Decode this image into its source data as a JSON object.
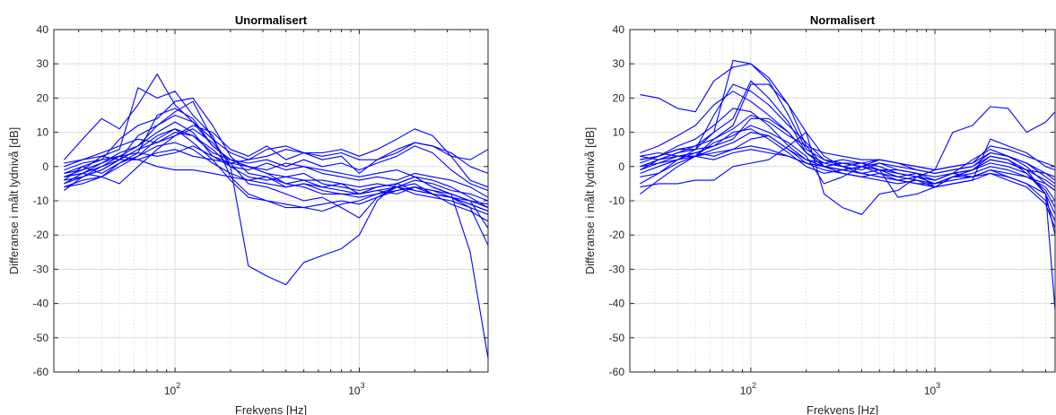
{
  "chart_data": [
    {
      "type": "line",
      "title": "Unormalisert",
      "xlabel": "Frekvens [Hz]",
      "ylabel": "Differanse i målt lydnivå [dB]",
      "xscale": "log",
      "xlim": [
        22,
        5000
      ],
      "ylim": [
        -60,
        40
      ],
      "yticks": [
        40,
        30,
        20,
        10,
        0,
        -10,
        -20,
        -30,
        -40,
        -50,
        -60
      ],
      "xticks": [
        {
          "value": 100,
          "base": "10",
          "exp": "2"
        },
        {
          "value": 1000,
          "base": "10",
          "exp": "3"
        }
      ],
      "grid": true,
      "line_color": "#0000ff",
      "x": [
        25,
        31.5,
        40,
        50,
        63,
        80,
        100,
        125,
        160,
        200,
        250,
        315,
        400,
        500,
        630,
        800,
        1000,
        1250,
        1600,
        2000,
        2500,
        3150,
        4000,
        5000
      ],
      "series": [
        {
          "values": [
            -5,
            -3,
            0,
            2,
            9,
            12,
            16,
            19,
            8,
            0,
            -29,
            -32,
            -34.5,
            -28,
            -26,
            -24,
            -20,
            -10,
            -5,
            -3,
            -6,
            -8,
            -25,
            -56
          ]
        },
        {
          "values": [
            2,
            8,
            14,
            11,
            18,
            27,
            18,
            13,
            6,
            2,
            0,
            -2,
            -5,
            -4,
            -6,
            -5,
            -8,
            -6,
            -5,
            -7,
            -8,
            -9,
            -12,
            -23
          ]
        },
        {
          "values": [
            -3,
            -1,
            3,
            5,
            23,
            20,
            22,
            15,
            9,
            -3,
            -8,
            -10,
            -12,
            -12,
            -13,
            -11,
            -10,
            -8,
            -6,
            -8,
            -9,
            -10,
            -12,
            -14
          ]
        },
        {
          "values": [
            -4,
            0,
            2,
            8,
            12,
            14,
            19,
            20,
            12,
            3,
            -2,
            -3,
            -5,
            -6,
            -8,
            -8,
            -9,
            -8,
            -7,
            -6,
            -7,
            -8,
            -10,
            -12
          ]
        },
        {
          "values": [
            -5,
            -2,
            1,
            4,
            6,
            10,
            13,
            10,
            3,
            1,
            2,
            3,
            5,
            4,
            4,
            5,
            3,
            5,
            8,
            11,
            9,
            3,
            -4,
            -6
          ]
        },
        {
          "values": [
            -6,
            -4,
            -3,
            0,
            3,
            8,
            11,
            9,
            4,
            2,
            1,
            2,
            0,
            2,
            0,
            1,
            -1,
            1,
            3,
            6,
            4,
            -1,
            -5,
            -7
          ]
        },
        {
          "values": [
            -7,
            -3,
            -1,
            2,
            5,
            7,
            9,
            12,
            10,
            5,
            3,
            6,
            2,
            4,
            3,
            4,
            2,
            2,
            5,
            7,
            6,
            3,
            2,
            5
          ]
        },
        {
          "values": [
            -2,
            0,
            -2,
            1,
            3,
            6,
            7,
            5,
            1,
            -2,
            -4,
            -3,
            -6,
            -5,
            -6,
            -7,
            -8,
            -7,
            -8,
            -6,
            -8,
            -9,
            -11,
            -13
          ]
        },
        {
          "values": [
            -1,
            1,
            2,
            3,
            4,
            3,
            4,
            6,
            3,
            0,
            -1,
            1,
            -1,
            0,
            -2,
            -3,
            -4,
            -3,
            -4,
            -2,
            -3,
            -4,
            -6,
            -9
          ]
        },
        {
          "values": [
            0,
            2,
            3,
            2,
            2,
            4,
            5,
            3,
            2,
            1,
            0,
            -2,
            -3,
            -4,
            -4,
            -5,
            -6,
            -5,
            -6,
            -4,
            -5,
            -7,
            -8,
            -10
          ]
        },
        {
          "values": [
            -3,
            -2,
            -3,
            -5,
            0,
            5,
            9,
            11,
            7,
            1,
            -5,
            -6,
            -8,
            -10,
            -9,
            -12,
            -15,
            -9,
            -6,
            -5,
            -8,
            -11,
            -13,
            -16
          ]
        },
        {
          "values": [
            1,
            2,
            4,
            6,
            8,
            7,
            10,
            9,
            5,
            0,
            -3,
            -4,
            -3,
            -2,
            -5,
            -6,
            -7,
            -6,
            -5,
            -3,
            -6,
            -8,
            -10,
            -18
          ]
        },
        {
          "values": [
            -4,
            -3,
            -1,
            2,
            5,
            9,
            11,
            7,
            2,
            -4,
            -9,
            -10,
            -11,
            -12,
            -11,
            -10,
            -11,
            -9,
            -7,
            -6,
            -7,
            -9,
            -10,
            -11
          ]
        },
        {
          "values": [
            -2,
            -1,
            1,
            3,
            6,
            12,
            15,
            13,
            8,
            4,
            2,
            5,
            6,
            4,
            2,
            3,
            -2,
            2,
            4,
            7,
            6,
            4,
            0,
            -2
          ]
        },
        {
          "values": [
            -6,
            -5,
            -3,
            1,
            4,
            15,
            17,
            14,
            6,
            2,
            0,
            -1,
            1,
            0,
            -1,
            -2,
            -3,
            -2,
            -1,
            -3,
            -4,
            -6,
            -9,
            -12
          ]
        },
        {
          "values": [
            -3,
            -2,
            0,
            3,
            2,
            0,
            -1,
            -1,
            -2,
            -3,
            -4,
            -5,
            -6,
            -5,
            -7,
            -8,
            -8,
            -7,
            -6,
            -7,
            -8,
            -9,
            -11,
            -13
          ]
        }
      ]
    },
    {
      "type": "line",
      "title": "Normalisert",
      "xlabel": "Frekvens [Hz]",
      "ylabel": "Differanse i målt lydnivå [dB]",
      "xscale": "log",
      "xlim": [
        22,
        4500
      ],
      "ylim": [
        -60,
        40
      ],
      "yticks": [
        40,
        30,
        20,
        10,
        0,
        -10,
        -20,
        -30,
        -40,
        -50,
        -60
      ],
      "xticks": [
        {
          "value": 100,
          "base": "10",
          "exp": "2"
        },
        {
          "value": 1000,
          "base": "10",
          "exp": "3"
        }
      ],
      "grid": true,
      "line_color": "#0000ff",
      "x": [
        25,
        31.5,
        40,
        50,
        63,
        80,
        100,
        125,
        160,
        200,
        250,
        315,
        400,
        500,
        630,
        800,
        1000,
        1250,
        1600,
        2000,
        2500,
        3150,
        4000,
        4500
      ],
      "series": [
        {
          "values": [
            21,
            20,
            17,
            16,
            25,
            29,
            30,
            26,
            18,
            6,
            0,
            -1,
            0,
            -2,
            -3,
            -2,
            -6,
            -3,
            -1,
            2,
            1,
            -1,
            -2,
            -3
          ]
        },
        {
          "values": [
            -6,
            -5,
            -5,
            -4,
            -4,
            0,
            1,
            2,
            6,
            10,
            -8,
            -12,
            -14,
            -8,
            -7,
            -3,
            -1,
            10,
            12,
            17.5,
            17,
            10,
            13,
            16
          ]
        },
        {
          "values": [
            -1,
            2,
            4,
            6,
            10,
            31,
            30,
            25,
            15,
            5,
            2,
            1,
            0,
            1,
            0,
            -1,
            -2,
            -1,
            0,
            3,
            2,
            -2,
            -8,
            -42
          ]
        },
        {
          "values": [
            -8,
            -4,
            0,
            3,
            8,
            12,
            24,
            24,
            18,
            10,
            3,
            0,
            -2,
            -1,
            -3,
            -4,
            -5,
            -3,
            -2,
            0,
            -1,
            -3,
            -6,
            -10
          ]
        },
        {
          "values": [
            3,
            2,
            4,
            5,
            10,
            14,
            25,
            20,
            13,
            4,
            1,
            2,
            1,
            0,
            -2,
            -3,
            -4,
            -2,
            -1,
            2,
            1,
            -1,
            -4,
            -6
          ]
        },
        {
          "values": [
            -2,
            0,
            2,
            5,
            15,
            24,
            22,
            18,
            12,
            7,
            2,
            0,
            -1,
            1,
            -1,
            -2,
            -4,
            -2,
            2,
            5,
            3,
            1,
            -3,
            -5
          ]
        },
        {
          "values": [
            4,
            6,
            9,
            12,
            18,
            22,
            19,
            15,
            10,
            4,
            0,
            -1,
            -2,
            -3,
            -4,
            -5,
            -6,
            -3,
            -1,
            1,
            0,
            -2,
            -7,
            -12
          ]
        },
        {
          "values": [
            -3,
            -2,
            1,
            3,
            7,
            9,
            12,
            10,
            7,
            3,
            -5,
            -3,
            0,
            2,
            1,
            -1,
            -2,
            -1,
            0,
            4,
            3,
            0,
            -5,
            -7
          ]
        },
        {
          "values": [
            1,
            3,
            5,
            6,
            8,
            11,
            15,
            13,
            9,
            6,
            4,
            3,
            2,
            2,
            1,
            0,
            -1,
            0,
            1,
            6,
            5,
            3,
            1,
            0
          ]
        },
        {
          "values": [
            -5,
            -2,
            2,
            4,
            3,
            5,
            8,
            9,
            5,
            2,
            0,
            -1,
            -2,
            -3,
            -4,
            -3,
            -5,
            -4,
            -3,
            -1,
            -3,
            -5,
            -10,
            -16
          ]
        },
        {
          "values": [
            2,
            3,
            6,
            8,
            12,
            17,
            16,
            12,
            6,
            2,
            1,
            0,
            1,
            -1,
            -1,
            -2,
            -3,
            -2,
            -1,
            3,
            2,
            -1,
            -8,
            -20
          ]
        },
        {
          "values": [
            0,
            1,
            2,
            3,
            5,
            7,
            10,
            9,
            5,
            1,
            -1,
            -2,
            -3,
            -2,
            -4,
            -5,
            -5,
            -3,
            -3,
            -2,
            -4,
            -6,
            -11,
            -18
          ]
        },
        {
          "values": [
            3,
            4,
            3,
            3,
            2,
            4,
            5,
            4,
            3,
            1,
            0,
            1,
            0,
            -1,
            -2,
            -3,
            -4,
            -2,
            -3,
            -1,
            -2,
            -3,
            -5,
            -7
          ]
        },
        {
          "values": [
            -1,
            1,
            3,
            4,
            6,
            8,
            14,
            14,
            10,
            4,
            0,
            -2,
            -3,
            -4,
            -5,
            -4,
            -6,
            -5,
            -4,
            8,
            6,
            4,
            0,
            -1
          ]
        },
        {
          "values": [
            2,
            3,
            5,
            5,
            6,
            10,
            11,
            8,
            4,
            0,
            -2,
            -1,
            0,
            -1,
            -9,
            -8,
            -6,
            -5,
            -4,
            -2,
            -3,
            -5,
            -8,
            -14
          ]
        },
        {
          "values": [
            0,
            2,
            3,
            3,
            4,
            5,
            6,
            5,
            3,
            1,
            0,
            1,
            1,
            2,
            1,
            0,
            -1,
            0,
            1,
            4,
            3,
            1,
            -2,
            -4
          ]
        }
      ]
    }
  ]
}
